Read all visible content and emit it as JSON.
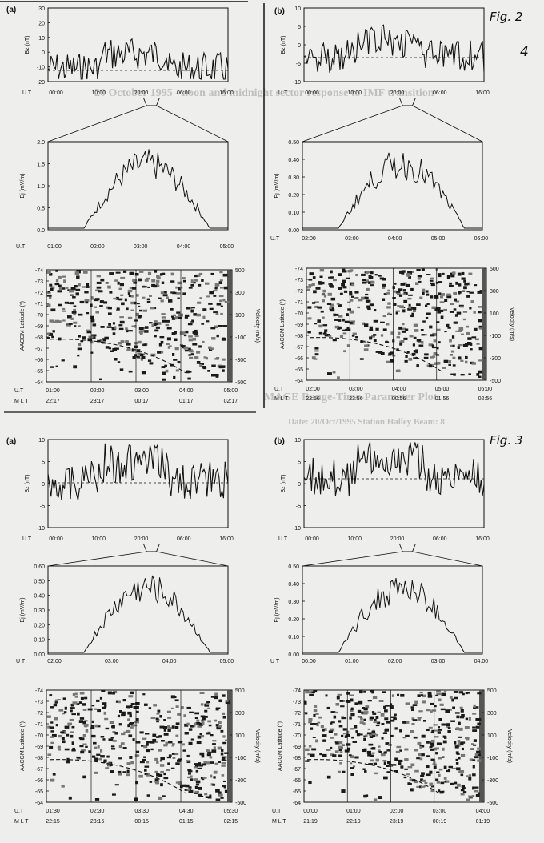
{
  "annotations": {
    "fig2_label": "Fig. 2",
    "fig3_label": "Fig. 3",
    "page_note": "4"
  },
  "bleedthrough": {
    "line1": "20 October 1995 - noon and midnight sector response to IMF transition",
    "line2": "MAGE Range-Time-Parameter Plot",
    "line3": "Date: 20/Oct/1995  Station Halley Beam: 8"
  },
  "colors": {
    "ink": "#111111",
    "paper": "#eeeeec",
    "bleed": "#9a9a9a"
  },
  "panels": [
    {
      "label": "(a)",
      "bz": {
        "ylabel": "Bz (nT)",
        "yticks": [
          "30",
          "20",
          "10",
          "0",
          "-10",
          "-20"
        ],
        "xticks": [
          "00:00",
          "10:00",
          "20:00",
          "06:00",
          "16:00"
        ],
        "ut_label": "U T"
      },
      "ej": {
        "ylabel": "Ej (mV/m)",
        "yticks": [
          "2.0",
          "1.5",
          "1.0",
          "0.5",
          "0.0"
        ],
        "xticks": [
          "01:00",
          "02:00",
          "03:00",
          "04:00",
          "05:00"
        ],
        "ut_label": "U.T"
      },
      "rtp": {
        "ylabel": "AACGM Latitude (°)",
        "yticks": [
          "-74",
          "-73",
          "-72",
          "-71",
          "-70",
          "-69",
          "-68",
          "-67",
          "-66",
          "-65",
          "-64"
        ],
        "vlabel": "Velocity (m/s)",
        "vticks": [
          "500",
          "300",
          "100",
          "-100",
          "-300",
          "-500"
        ],
        "ut_label": "U.T",
        "mlt_label": "M L T",
        "ut_ticks": [
          "01:00",
          "02:00",
          "03:00",
          "04:00",
          "05:00"
        ],
        "mlt_ticks": [
          "22:17",
          "23:17",
          "00:17",
          "01:17",
          "02:17"
        ]
      }
    },
    {
      "label": "(b)",
      "bz": {
        "ylabel": "Bz (nT)",
        "yticks": [
          "10",
          "5",
          "0",
          "-5",
          "-10"
        ],
        "xticks": [
          "00:00",
          "10:00",
          "20:00",
          "06:00",
          "16:00"
        ],
        "ut_label": "U.T"
      },
      "ej": {
        "ylabel": "Ej (mV/m)",
        "yticks": [
          "0.50",
          "0.40",
          "0.30",
          "0.20",
          "0.10",
          "0.00"
        ],
        "xticks": [
          "02:00",
          "03:00",
          "04:00",
          "05:00",
          "06:00"
        ],
        "ut_label": "U.T"
      },
      "rtp": {
        "ylabel": "AACGM Latitude (°)",
        "yticks": [
          "-74",
          "-73",
          "-72",
          "-71",
          "-70",
          "-69",
          "-68",
          "-67",
          "-66",
          "-65",
          "-64"
        ],
        "vlabel": "Velocity (m/s)",
        "vticks": [
          "500",
          "300",
          "100",
          "-100",
          "-300",
          "-500"
        ],
        "ut_label": "U.T",
        "mlt_label": "M L T",
        "ut_ticks": [
          "02:00",
          "03:00",
          "04:00",
          "05:00",
          "06:00"
        ],
        "mlt_ticks": [
          "22:56",
          "23:56",
          "00:56",
          "01:56",
          "02:56"
        ]
      }
    },
    {
      "label": "(a)",
      "bz": {
        "ylabel": "Bz (nT)",
        "yticks": [
          "10",
          "5",
          "0",
          "-5",
          "-10"
        ],
        "xticks": [
          "00:00",
          "10:00",
          "20:00",
          "06:00",
          "16:00"
        ],
        "ut_label": "U T"
      },
      "ej": {
        "ylabel": "Ej (mV/m)",
        "yticks": [
          "0.60",
          "0.50",
          "0.40",
          "0.30",
          "0.20",
          "0.10",
          "0.00"
        ],
        "xticks": [
          "02:00",
          "03:00",
          "04:00",
          "05:00"
        ],
        "ut_label": "U T"
      },
      "rtp": {
        "ylabel": "AACGM Latitude (°)",
        "yticks": [
          "-74",
          "-73",
          "-72",
          "-71",
          "-70",
          "-69",
          "-68",
          "-67",
          "-66",
          "-65",
          "-64"
        ],
        "vlabel": "Velocity (m/s)",
        "vticks": [
          "500",
          "300",
          "100",
          "-100",
          "-300",
          "-500"
        ],
        "ut_label": "U.T",
        "mlt_label": "M L T",
        "ut_ticks": [
          "01:30",
          "02:30",
          "03:30",
          "04:30",
          "05:30"
        ],
        "mlt_ticks": [
          "22:15",
          "23:15",
          "00:15",
          "01:15",
          "02:15"
        ]
      }
    },
    {
      "label": "(b)",
      "bz": {
        "ylabel": "Bz (nT)",
        "yticks": [
          "10",
          "5",
          "0",
          "-5",
          "-10"
        ],
        "xticks": [
          "00:00",
          "10:00",
          "20:00",
          "06:00",
          "16:00"
        ],
        "ut_label": "U T"
      },
      "ej": {
        "ylabel": "Ej (mV/m)",
        "yticks": [
          "0.50",
          "0.40",
          "0.30",
          "0.20",
          "0.10",
          "0.00"
        ],
        "xticks": [
          "00:00",
          "01:00",
          "02:00",
          "03:00",
          "04:00"
        ],
        "ut_label": "U T"
      },
      "rtp": {
        "ylabel": "AACGM Latitude (°)",
        "yticks": [
          "-74",
          "-73",
          "-72",
          "-71",
          "-70",
          "-69",
          "-68",
          "-67",
          "-66",
          "-65",
          "-64"
        ],
        "vlabel": "Velocity (m/s)",
        "vticks": [
          "500",
          "300",
          "100",
          "-100",
          "-300",
          "-500"
        ],
        "ut_label": "U.T",
        "mlt_label": "M L T",
        "ut_ticks": [
          "00:00",
          "01:00",
          "02:00",
          "03:00",
          "04:00"
        ],
        "mlt_ticks": [
          "21:19",
          "22:19",
          "23:19",
          "00:19",
          "01:19"
        ]
      }
    }
  ]
}
